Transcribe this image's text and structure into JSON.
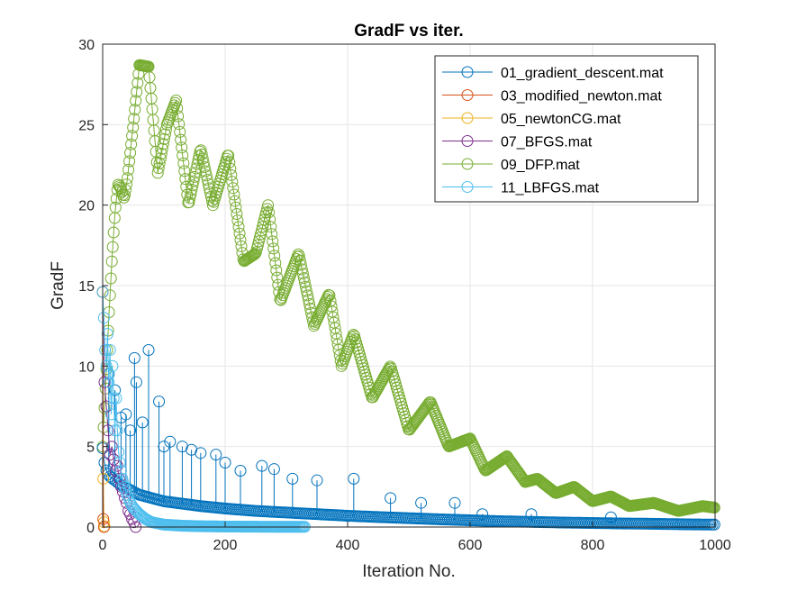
{
  "chart_data": {
    "type": "line",
    "title": "GradF vs iter.",
    "xlabel": "Iteration No.",
    "ylabel": "GradF",
    "xlim": [
      0,
      1000
    ],
    "ylim": [
      0,
      30
    ],
    "xticks": [
      "0",
      "200",
      "400",
      "600",
      "800",
      "1000"
    ],
    "yticks": [
      "0",
      "5",
      "10",
      "15",
      "20",
      "25",
      "30"
    ],
    "grid": true,
    "legend_position": "top-right",
    "series": [
      {
        "name": "01_gradient_descent.mat",
        "color": "#0072BD",
        "marker": "circle",
        "x": [
          0,
          2,
          5,
          10,
          20,
          30,
          40,
          50,
          60,
          70,
          80,
          100,
          130,
          160,
          200,
          250,
          300,
          350,
          400,
          450,
          500,
          550,
          600,
          650,
          700,
          750,
          800,
          850,
          900,
          950,
          1000
        ],
        "y": [
          4.9,
          4.2,
          3.6,
          3.2,
          2.9,
          2.6,
          2.4,
          2.2,
          2.0,
          1.9,
          1.8,
          1.6,
          1.45,
          1.3,
          1.15,
          1.0,
          0.9,
          0.8,
          0.7,
          0.62,
          0.55,
          0.48,
          0.42,
          0.36,
          0.32,
          0.28,
          0.25,
          0.22,
          0.2,
          0.17,
          0.15
        ],
        "spikes": [
          [
            10,
            9.5
          ],
          [
            20,
            8.5
          ],
          [
            30,
            6.8
          ],
          [
            38,
            7.0
          ],
          [
            45,
            6.0
          ],
          [
            52,
            10.5
          ],
          [
            55,
            9.0
          ],
          [
            65,
            6.5
          ],
          [
            75,
            11.0
          ],
          [
            92,
            7.8
          ],
          [
            100,
            5.0
          ],
          [
            110,
            5.3
          ],
          [
            130,
            5.0
          ],
          [
            145,
            4.8
          ],
          [
            160,
            4.6
          ],
          [
            185,
            4.5
          ],
          [
            200,
            4.0
          ],
          [
            225,
            3.5
          ],
          [
            260,
            3.8
          ],
          [
            280,
            3.6
          ],
          [
            310,
            3.0
          ],
          [
            350,
            2.9
          ],
          [
            410,
            3.0
          ],
          [
            470,
            1.8
          ],
          [
            520,
            1.5
          ],
          [
            575,
            1.5
          ],
          [
            620,
            0.8
          ],
          [
            700,
            0.8
          ],
          [
            830,
            0.6
          ]
        ]
      },
      {
        "name": "03_modified_newton.mat",
        "color": "#D95319",
        "marker": "circle",
        "x": [
          0,
          1,
          2
        ],
        "y": [
          14.6,
          0.5,
          0.0
        ]
      },
      {
        "name": "05_newtonCG.mat",
        "color": "#EDB120",
        "marker": "circle",
        "x": [
          0,
          1,
          2,
          3
        ],
        "y": [
          14.6,
          3.0,
          0.3,
          0.05
        ]
      },
      {
        "name": "07_BFGS.mat",
        "color": "#7E2F8E",
        "marker": "circle",
        "x": [
          0,
          3,
          6,
          9,
          12,
          15,
          18,
          21,
          24,
          27,
          30,
          33,
          36,
          39,
          42,
          45,
          48,
          51,
          54
        ],
        "y": [
          14.6,
          9.0,
          7.5,
          6.0,
          4.5,
          5.0,
          4.2,
          3.5,
          3.8,
          3.0,
          2.5,
          2.2,
          1.8,
          1.5,
          1.0,
          0.8,
          0.5,
          0.3,
          0.0
        ]
      },
      {
        "name": "09_DFP.mat",
        "color": "#77AC30",
        "marker": "circle",
        "x": [
          0,
          5,
          10,
          15,
          20,
          25,
          30,
          35,
          40,
          50,
          60,
          75,
          90,
          105,
          120,
          140,
          160,
          180,
          205,
          230,
          250,
          270,
          290,
          320,
          345,
          370,
          390,
          410,
          440,
          470,
          500,
          535,
          565,
          600,
          625,
          660,
          690,
          710,
          740,
          770,
          800,
          830,
          860,
          900,
          940,
          980,
          1000
        ],
        "y": [
          5.0,
          9.0,
          13.0,
          16.5,
          19.5,
          21.3,
          21.0,
          20.4,
          21.5,
          25.0,
          28.7,
          28.6,
          22.0,
          25.0,
          26.5,
          20.0,
          23.5,
          20.0,
          23.2,
          16.5,
          17.0,
          20.0,
          14.0,
          17.0,
          12.5,
          14.5,
          10.0,
          12.0,
          8.0,
          10.0,
          6.0,
          7.8,
          5.0,
          5.5,
          3.5,
          4.4,
          2.8,
          3.0,
          2.1,
          2.5,
          1.6,
          1.9,
          1.3,
          1.5,
          1.0,
          1.3,
          1.2
        ]
      },
      {
        "name": "11_LBFGS.mat",
        "color": "#4DBEEE",
        "marker": "circle",
        "x": [
          0,
          2,
          4,
          6,
          8,
          10,
          12,
          14,
          16,
          18,
          20,
          22,
          25,
          28,
          32,
          36,
          40,
          45,
          50,
          55,
          60,
          70,
          80,
          100,
          130,
          160,
          200,
          250,
          300,
          330
        ],
        "y": [
          14.6,
          13.0,
          11.0,
          10.0,
          12.0,
          9.0,
          11.0,
          7.0,
          10.0,
          8.0,
          6.0,
          8.0,
          5.0,
          4.0,
          3.0,
          2.5,
          2.0,
          1.5,
          1.2,
          1.0,
          0.8,
          0.5,
          0.3,
          0.15,
          0.08,
          0.05,
          0.03,
          0.02,
          0.01,
          0.01
        ]
      }
    ]
  }
}
